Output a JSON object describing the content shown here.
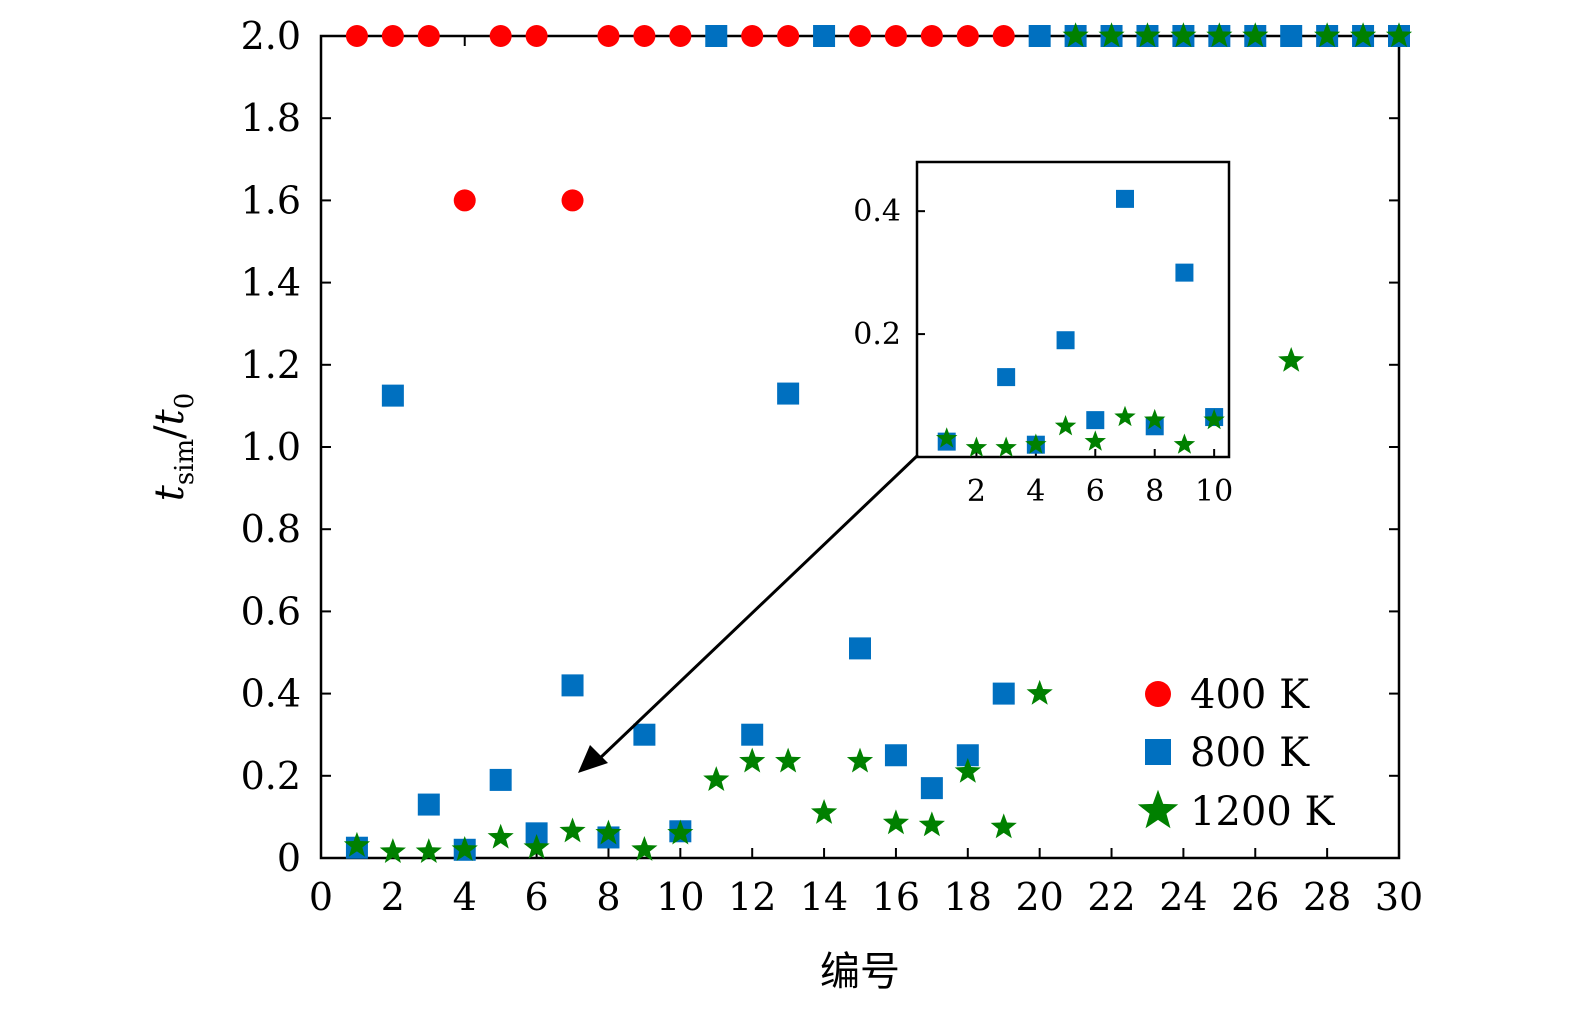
{
  "chart_data": [
    {
      "type": "scatter",
      "title": "",
      "xlabel": "编号",
      "ylabel": {
        "base": "t",
        "sub": "sim",
        "sep": "/",
        "base2": "t",
        "sub2": "0"
      },
      "xlim": [
        0,
        30
      ],
      "ylim": [
        0,
        2.0
      ],
      "xticks": [
        0,
        2,
        4,
        6,
        8,
        10,
        12,
        14,
        16,
        18,
        20,
        22,
        24,
        26,
        28,
        30
      ],
      "yticks": [
        0,
        0.2,
        0.4,
        0.6,
        0.8,
        1.0,
        1.2,
        1.4,
        1.6,
        1.8,
        2.0
      ],
      "xtick_labels": [
        "0",
        "2",
        "4",
        "6",
        "8",
        "10",
        "12",
        "14",
        "16",
        "18",
        "20",
        "22",
        "24",
        "26",
        "28",
        "30"
      ],
      "ytick_labels": [
        "0",
        "0.2",
        "0.4",
        "0.6",
        "0.8",
        "1.0",
        "1.2",
        "1.4",
        "1.6",
        "1.8",
        "2.0"
      ],
      "legend_position": "bottom-right",
      "series": [
        {
          "name": "400 K",
          "marker": "circle",
          "color": "#ff0000",
          "x": [
            1,
            2,
            3,
            4,
            5,
            6,
            7,
            8,
            9,
            10,
            12,
            13,
            15,
            16,
            17,
            18,
            19
          ],
          "y": [
            2.0,
            2.0,
            2.0,
            1.6,
            2.0,
            2.0,
            1.6,
            2.0,
            2.0,
            2.0,
            2.0,
            2.0,
            2.0,
            2.0,
            2.0,
            2.0,
            2.0
          ]
        },
        {
          "name": "800 K",
          "marker": "square",
          "color": "#0070c0",
          "x": [
            1,
            2,
            3,
            4,
            5,
            6,
            7,
            8,
            9,
            10,
            11,
            12,
            13,
            14,
            15,
            16,
            17,
            18,
            19,
            20,
            21,
            22,
            23,
            24,
            25,
            26,
            27,
            28,
            29,
            30
          ],
          "y": [
            0.025,
            1.125,
            0.13,
            0.02,
            0.19,
            0.06,
            0.42,
            0.05,
            0.3,
            0.065,
            2.0,
            0.3,
            1.13,
            2.0,
            0.51,
            0.25,
            0.17,
            0.25,
            0.4,
            2.0,
            2.0,
            2.0,
            2.0,
            2.0,
            2.0,
            2.0,
            2.0,
            2.0,
            2.0,
            2.0
          ]
        },
        {
          "name": "1200 K",
          "marker": "star",
          "color": "#008000",
          "x": [
            1,
            2,
            3,
            4,
            5,
            6,
            7,
            8,
            9,
            10,
            11,
            12,
            13,
            14,
            15,
            16,
            17,
            18,
            19,
            20,
            21,
            22,
            23,
            24,
            25,
            26,
            27,
            28,
            29,
            30
          ],
          "y": [
            0.03,
            0.015,
            0.015,
            0.02,
            0.05,
            0.025,
            0.065,
            0.06,
            0.02,
            0.06,
            0.19,
            0.235,
            0.235,
            0.11,
            0.235,
            0.085,
            0.08,
            0.21,
            0.075,
            0.4,
            2.0,
            2.0,
            2.0,
            2.0,
            2.0,
            2.0,
            1.21,
            2.0,
            2.0,
            2.0
          ]
        }
      ]
    },
    {
      "type": "scatter",
      "title": "",
      "xlabel": "",
      "ylabel": "",
      "xlim": [
        0,
        10.5
      ],
      "ylim": [
        0.0,
        0.48
      ],
      "xticks": [
        2,
        4,
        6,
        8,
        10
      ],
      "yticks": [
        0.2,
        0.4
      ],
      "xtick_labels": [
        "2",
        "4",
        "6",
        "8",
        "10"
      ],
      "ytick_labels": [
        "0.2",
        "0.4"
      ],
      "series": [
        {
          "name": "800 K",
          "marker": "square",
          "color": "#0070c0",
          "x": [
            1,
            3,
            4,
            5,
            6,
            7,
            8,
            9,
            10
          ],
          "y": [
            0.025,
            0.13,
            0.02,
            0.19,
            0.06,
            0.42,
            0.05,
            0.3,
            0.065
          ]
        },
        {
          "name": "1200 K",
          "marker": "star",
          "color": "#008000",
          "x": [
            1,
            2,
            3,
            4,
            5,
            6,
            7,
            8,
            9,
            10
          ],
          "y": [
            0.03,
            0.015,
            0.015,
            0.02,
            0.05,
            0.025,
            0.065,
            0.06,
            0.02,
            0.06
          ]
        }
      ]
    }
  ]
}
